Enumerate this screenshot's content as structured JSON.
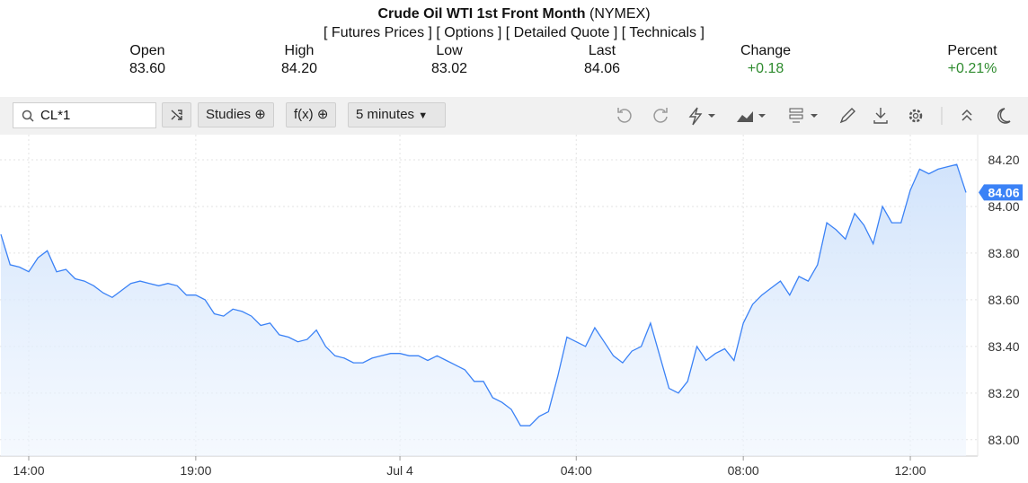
{
  "header": {
    "title": "Crude Oil WTI 1st Front Month",
    "exchange": "(NYMEX)",
    "links": [
      "[ Futures Prices ]",
      "[ Options ]",
      "[ Detailed Quote ]",
      "[ Technicals ]"
    ]
  },
  "quote": [
    {
      "label": "Open",
      "value": "83.60"
    },
    {
      "label": "High",
      "value": "84.20"
    },
    {
      "label": "Low",
      "value": "83.02"
    },
    {
      "label": "Last",
      "value": "84.06"
    },
    {
      "label": "Change",
      "value": "+0.18"
    },
    {
      "label": "Percent",
      "value": "+0.21%"
    }
  ],
  "toolbar": {
    "symbol": "CL*1",
    "studies": "Studies",
    "fx": "f(x)",
    "interval": "5 minutes"
  },
  "chart_data": {
    "type": "line",
    "color": "#3b82f6",
    "grid": true,
    "categories": [
      null,
      null,
      null,
      "14:00",
      null,
      null,
      null,
      null,
      null,
      null,
      null,
      null,
      null,
      null,
      null,
      null,
      null,
      null,
      null,
      null,
      null,
      "19:00",
      null,
      null,
      null,
      null,
      null,
      null,
      null,
      null,
      null,
      null,
      null,
      null,
      null,
      null,
      null,
      null,
      null,
      null,
      null,
      null,
      null,
      "Jul 4",
      null,
      null,
      null,
      null,
      null,
      null,
      null,
      null,
      null,
      null,
      null,
      null,
      null,
      null,
      null,
      null,
      null,
      null,
      "04:00",
      null,
      null,
      null,
      null,
      null,
      null,
      null,
      null,
      null,
      null,
      null,
      null,
      null,
      null,
      null,
      null,
      null,
      "08:00",
      null,
      null,
      null,
      null,
      null,
      null,
      null,
      null,
      null,
      null,
      null,
      null,
      null,
      null,
      null,
      null,
      null,
      "12:00",
      null,
      null,
      null,
      null,
      null,
      null
    ],
    "values": [
      83.88,
      83.75,
      83.74,
      83.72,
      83.78,
      83.81,
      83.72,
      83.73,
      83.69,
      83.68,
      83.66,
      83.63,
      83.61,
      83.64,
      83.67,
      83.68,
      83.67,
      83.66,
      83.67,
      83.66,
      83.62,
      83.62,
      83.6,
      83.54,
      83.53,
      83.56,
      83.55,
      83.53,
      83.49,
      83.5,
      83.45,
      83.44,
      83.42,
      83.43,
      83.47,
      83.4,
      83.36,
      83.35,
      83.33,
      83.33,
      83.35,
      83.36,
      83.37,
      83.37,
      83.36,
      83.36,
      83.34,
      83.36,
      83.34,
      83.32,
      83.3,
      83.25,
      83.25,
      83.18,
      83.16,
      83.13,
      83.06,
      83.06,
      83.1,
      83.12,
      83.27,
      83.44,
      83.42,
      83.4,
      83.48,
      83.42,
      83.36,
      83.33,
      83.38,
      83.4,
      83.5,
      83.36,
      83.22,
      83.2,
      83.25,
      83.4,
      83.34,
      83.37,
      83.39,
      83.34,
      83.5,
      83.58,
      83.62,
      83.65,
      83.68,
      83.62,
      83.7,
      83.68,
      83.75,
      83.93,
      83.9,
      83.86,
      83.97,
      83.92,
      83.84,
      84.0,
      83.93,
      83.93,
      84.07,
      84.16,
      84.14,
      84.16,
      84.17,
      84.18,
      84.06
    ],
    "ylim": [
      82.93,
      84.3
    ],
    "yticks": [
      {
        "value": 83,
        "label": "83.00"
      },
      {
        "value": 83.2,
        "label": "83.20"
      },
      {
        "value": 83.4,
        "label": "83.40"
      },
      {
        "value": 83.6,
        "label": "83.60"
      },
      {
        "value": 83.8,
        "label": "83.80"
      },
      {
        "value": 84,
        "label": "84.00"
      },
      {
        "value": 84.2,
        "label": "84.20"
      }
    ]
  }
}
